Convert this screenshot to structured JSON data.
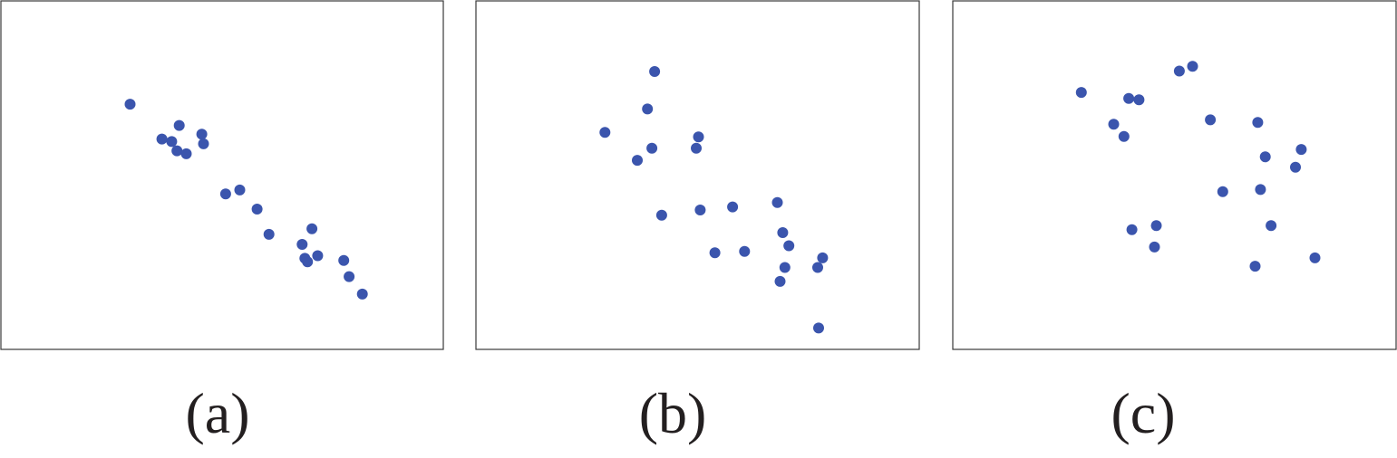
{
  "chart_data": [
    {
      "type": "scatter",
      "panel_label": "(a)",
      "xlim": [
        0,
        10
      ],
      "ylim": [
        0,
        8
      ],
      "grid": false,
      "color": "#3b55ad",
      "points": [
        {
          "x": 2.92,
          "y": 5.63
        },
        {
          "x": 3.64,
          "y": 4.83
        },
        {
          "x": 3.86,
          "y": 4.77
        },
        {
          "x": 4.03,
          "y": 5.14
        },
        {
          "x": 3.98,
          "y": 4.56
        },
        {
          "x": 4.19,
          "y": 4.49
        },
        {
          "x": 4.54,
          "y": 4.94
        },
        {
          "x": 4.58,
          "y": 4.72
        },
        {
          "x": 5.08,
          "y": 3.57
        },
        {
          "x": 5.4,
          "y": 3.66
        },
        {
          "x": 5.79,
          "y": 3.22
        },
        {
          "x": 6.06,
          "y": 2.64
        },
        {
          "x": 7.03,
          "y": 2.77
        },
        {
          "x": 6.81,
          "y": 2.41
        },
        {
          "x": 6.87,
          "y": 2.09
        },
        {
          "x": 6.93,
          "y": 2.01
        },
        {
          "x": 7.16,
          "y": 2.15
        },
        {
          "x": 7.75,
          "y": 2.04
        },
        {
          "x": 7.87,
          "y": 1.67
        },
        {
          "x": 8.17,
          "y": 1.27
        }
      ]
    },
    {
      "type": "scatter",
      "panel_label": "(b)",
      "xlim": [
        0,
        10
      ],
      "ylim": [
        0,
        8
      ],
      "grid": false,
      "color": "#3b55ad",
      "points": [
        {
          "x": 4.03,
          "y": 6.38
        },
        {
          "x": 3.87,
          "y": 5.52
        },
        {
          "x": 2.91,
          "y": 4.98
        },
        {
          "x": 5.02,
          "y": 4.88
        },
        {
          "x": 3.97,
          "y": 4.62
        },
        {
          "x": 4.97,
          "y": 4.62
        },
        {
          "x": 3.64,
          "y": 4.34
        },
        {
          "x": 4.19,
          "y": 3.08
        },
        {
          "x": 5.06,
          "y": 3.2
        },
        {
          "x": 5.79,
          "y": 3.27
        },
        {
          "x": 6.8,
          "y": 3.37
        },
        {
          "x": 6.92,
          "y": 2.68
        },
        {
          "x": 7.06,
          "y": 2.38
        },
        {
          "x": 5.39,
          "y": 2.22
        },
        {
          "x": 6.06,
          "y": 2.25
        },
        {
          "x": 6.97,
          "y": 1.88
        },
        {
          "x": 7.82,
          "y": 2.1
        },
        {
          "x": 7.71,
          "y": 1.88
        },
        {
          "x": 6.86,
          "y": 1.56
        },
        {
          "x": 7.73,
          "y": 0.49
        }
      ]
    },
    {
      "type": "scatter",
      "panel_label": "(c)",
      "xlim": [
        0,
        10
      ],
      "ylim": [
        0,
        8
      ],
      "grid": false,
      "color": "#3b55ad",
      "points": [
        {
          "x": 2.9,
          "y": 5.9
        },
        {
          "x": 3.97,
          "y": 5.76
        },
        {
          "x": 4.2,
          "y": 5.73
        },
        {
          "x": 5.11,
          "y": 6.39
        },
        {
          "x": 5.41,
          "y": 6.5
        },
        {
          "x": 3.63,
          "y": 5.17
        },
        {
          "x": 3.86,
          "y": 4.89
        },
        {
          "x": 5.81,
          "y": 5.27
        },
        {
          "x": 6.88,
          "y": 5.21
        },
        {
          "x": 7.05,
          "y": 4.42
        },
        {
          "x": 7.86,
          "y": 4.59
        },
        {
          "x": 7.73,
          "y": 4.18
        },
        {
          "x": 6.09,
          "y": 3.62
        },
        {
          "x": 6.94,
          "y": 3.67
        },
        {
          "x": 4.04,
          "y": 2.75
        },
        {
          "x": 4.59,
          "y": 2.84
        },
        {
          "x": 7.18,
          "y": 2.84
        },
        {
          "x": 4.55,
          "y": 2.35
        },
        {
          "x": 6.82,
          "y": 1.91
        },
        {
          "x": 8.17,
          "y": 2.1
        }
      ]
    }
  ]
}
